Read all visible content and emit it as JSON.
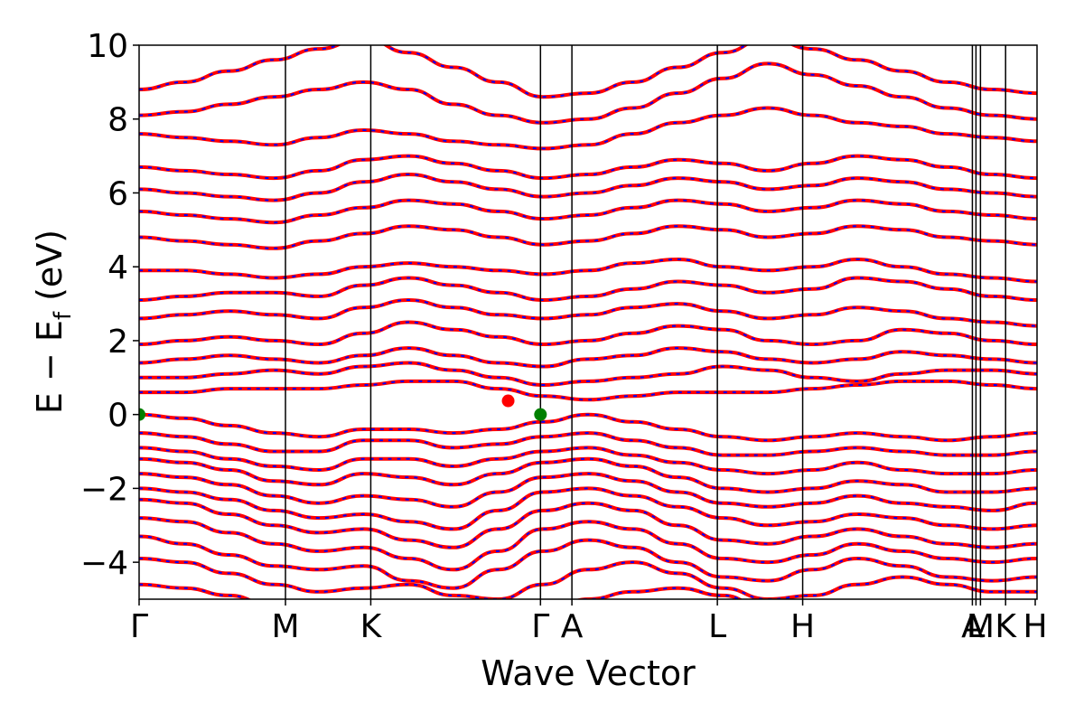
{
  "chart_data": {
    "type": "line",
    "xlabel": "Wave Vector",
    "ylabel": {
      "main": "E − E",
      "sub": "f",
      "unit": " (eV)"
    },
    "ylim": [
      -5,
      10
    ],
    "yticks": [
      -4,
      -2,
      0,
      2,
      4,
      6,
      8,
      10
    ],
    "ytick_labels": [
      "−4",
      "−2",
      "0",
      "2",
      "4",
      "6",
      "8",
      "10"
    ],
    "xlim": [
      0,
      1
    ],
    "kpoints": [
      {
        "label": "Γ",
        "x": 0.0
      },
      {
        "label": "M",
        "x": 0.163
      },
      {
        "label": "K",
        "x": 0.258
      },
      {
        "label": "Γ",
        "x": 0.447
      },
      {
        "label": "A",
        "x": 0.482
      },
      {
        "label": "L",
        "x": 0.644
      },
      {
        "label": "H",
        "x": 0.739
      },
      {
        "label": "A",
        "x": 0.928
      },
      {
        "label": "L",
        "x": 0.932
      },
      {
        "label": "M",
        "x": 0.937
      },
      {
        "label": "K",
        "x": 0.965
      },
      {
        "label": "H",
        "x": 0.998
      }
    ],
    "series": [
      {
        "style": "solid",
        "color": "#ff0000"
      },
      {
        "style": "dashed",
        "color": "#0000ff"
      }
    ],
    "markers": [
      {
        "x": 0.0,
        "y": 0.0,
        "color": "#008000"
      },
      {
        "x": 0.447,
        "y": 0.0,
        "color": "#008000"
      },
      {
        "x": 0.411,
        "y": 0.37,
        "color": "#ff0000"
      }
    ],
    "bands": [
      [
        -4.6,
        -4.7,
        -4.9,
        -5.2,
        -5.6,
        -5.9,
        -6.0,
        -6.1,
        -5.8,
        -5.4,
        -5.0,
        -4.8,
        -4.7,
        -4.9,
        -5.3,
        -5.7,
        -5.9,
        -5.8,
        -5.5,
        -5.2,
        -5.1
      ],
      [
        -3.9,
        -4.0,
        -4.3,
        -4.6,
        -4.8,
        -4.7,
        -4.6,
        -4.9,
        -5.0,
        -4.6,
        -4.2,
        -4.0,
        -4.3,
        -4.7,
        -5.0,
        -4.9,
        -4.6,
        -4.4,
        -4.6,
        -4.8,
        -4.8
      ],
      [
        -3.3,
        -3.5,
        -3.8,
        -4.1,
        -4.2,
        -4.1,
        -4.5,
        -4.7,
        -4.2,
        -3.7,
        -3.4,
        -3.6,
        -4.0,
        -4.4,
        -4.5,
        -4.2,
        -3.9,
        -4.1,
        -4.4,
        -4.5,
        -4.4
      ],
      [
        -2.8,
        -2.9,
        -3.2,
        -3.5,
        -3.7,
        -3.6,
        -3.9,
        -4.2,
        -3.7,
        -3.1,
        -2.9,
        -3.1,
        -3.5,
        -3.9,
        -4.0,
        -3.8,
        -3.5,
        -3.7,
        -3.9,
        -4.0,
        -3.9
      ],
      [
        -2.3,
        -2.4,
        -2.7,
        -3.0,
        -3.2,
        -3.1,
        -3.4,
        -3.6,
        -3.1,
        -2.6,
        -2.4,
        -2.6,
        -3.0,
        -3.4,
        -3.5,
        -3.3,
        -3.1,
        -3.3,
        -3.5,
        -3.6,
        -3.5
      ],
      [
        -2.0,
        -2.1,
        -2.3,
        -2.6,
        -2.8,
        -2.7,
        -2.9,
        -3.1,
        -2.6,
        -2.1,
        -2.0,
        -2.2,
        -2.5,
        -2.8,
        -3.0,
        -2.9,
        -2.7,
        -2.8,
        -3.0,
        -3.1,
        -3.0
      ],
      [
        -1.6,
        -1.7,
        -1.9,
        -2.2,
        -2.4,
        -2.2,
        -2.3,
        -2.5,
        -2.1,
        -1.7,
        -1.6,
        -1.8,
        -2.1,
        -2.4,
        -2.5,
        -2.4,
        -2.2,
        -2.4,
        -2.5,
        -2.6,
        -2.4
      ],
      [
        -1.2,
        -1.3,
        -1.5,
        -1.8,
        -1.9,
        -1.6,
        -1.7,
        -1.9,
        -1.6,
        -1.3,
        -1.2,
        -1.4,
        -1.7,
        -2.0,
        -2.1,
        -2.0,
        -1.8,
        -1.9,
        -2.1,
        -2.1,
        -2.0
      ],
      [
        -0.9,
        -1.0,
        -1.2,
        -1.4,
        -1.5,
        -1.2,
        -1.2,
        -1.4,
        -1.2,
        -1.0,
        -0.9,
        -1.1,
        -1.3,
        -1.5,
        -1.6,
        -1.5,
        -1.3,
        -1.5,
        -1.6,
        -1.6,
        -1.5
      ],
      [
        -0.5,
        -0.6,
        -0.8,
        -1.0,
        -1.0,
        -0.7,
        -0.7,
        -0.9,
        -0.8,
        -0.6,
        -0.5,
        -0.7,
        -0.9,
        -1.1,
        -1.1,
        -1.0,
        -0.9,
        -1.0,
        -1.1,
        -1.1,
        -1.0
      ],
      [
        0.0,
        -0.1,
        -0.3,
        -0.5,
        -0.6,
        -0.4,
        -0.4,
        -0.5,
        -0.4,
        -0.2,
        0.0,
        -0.2,
        -0.4,
        -0.6,
        -0.7,
        -0.6,
        -0.5,
        -0.6,
        -0.7,
        -0.6,
        -0.5
      ],
      [
        0.6,
        0.6,
        0.7,
        0.7,
        0.7,
        0.8,
        0.9,
        0.9,
        0.7,
        0.5,
        0.4,
        0.5,
        0.6,
        0.6,
        0.6,
        0.7,
        0.8,
        0.9,
        0.9,
        0.8,
        0.7
      ],
      [
        1.0,
        1.0,
        1.1,
        1.2,
        1.1,
        1.3,
        1.4,
        1.2,
        1.0,
        0.8,
        0.9,
        1.0,
        1.1,
        1.3,
        1.2,
        1.0,
        0.9,
        1.1,
        1.2,
        1.2,
        1.1
      ],
      [
        1.4,
        1.5,
        1.6,
        1.5,
        1.4,
        1.6,
        1.8,
        1.6,
        1.4,
        1.3,
        1.5,
        1.6,
        1.8,
        1.7,
        1.5,
        1.4,
        1.5,
        1.7,
        1.6,
        1.5,
        1.4
      ],
      [
        1.9,
        2.0,
        2.1,
        2.0,
        1.9,
        2.2,
        2.5,
        2.3,
        2.1,
        1.9,
        2.0,
        2.2,
        2.4,
        2.3,
        2.0,
        1.9,
        2.0,
        2.3,
        2.2,
        2.0,
        1.9
      ],
      [
        2.6,
        2.7,
        2.8,
        2.7,
        2.6,
        2.9,
        3.1,
        2.9,
        2.7,
        2.6,
        2.7,
        2.9,
        3.0,
        2.8,
        2.6,
        2.7,
        2.9,
        2.8,
        2.6,
        2.5,
        2.4
      ],
      [
        3.1,
        3.2,
        3.3,
        3.3,
        3.2,
        3.5,
        3.7,
        3.5,
        3.3,
        3.1,
        3.2,
        3.4,
        3.6,
        3.5,
        3.3,
        3.4,
        3.7,
        3.6,
        3.4,
        3.2,
        3.1
      ],
      [
        3.9,
        3.9,
        3.8,
        3.7,
        3.8,
        4.0,
        4.1,
        4.0,
        3.9,
        3.8,
        3.9,
        4.1,
        4.2,
        4.0,
        3.9,
        4.0,
        4.2,
        4.0,
        3.8,
        3.7,
        3.6
      ],
      [
        4.8,
        4.7,
        4.6,
        4.5,
        4.7,
        4.9,
        5.1,
        5.0,
        4.8,
        4.6,
        4.7,
        4.9,
        5.1,
        5.0,
        4.8,
        4.9,
        5.1,
        5.0,
        4.8,
        4.7,
        4.6
      ],
      [
        5.5,
        5.4,
        5.3,
        5.2,
        5.4,
        5.6,
        5.8,
        5.7,
        5.5,
        5.3,
        5.4,
        5.6,
        5.8,
        5.7,
        5.5,
        5.6,
        5.8,
        5.7,
        5.5,
        5.4,
        5.3
      ],
      [
        6.1,
        6.0,
        5.9,
        5.8,
        6.0,
        6.3,
        6.5,
        6.3,
        6.1,
        5.9,
        6.0,
        6.2,
        6.4,
        6.3,
        6.1,
        6.2,
        6.4,
        6.3,
        6.1,
        6.0,
        5.9
      ],
      [
        6.7,
        6.6,
        6.5,
        6.4,
        6.6,
        6.9,
        7.0,
        6.8,
        6.6,
        6.4,
        6.5,
        6.7,
        6.9,
        6.8,
        6.6,
        6.8,
        7.0,
        6.9,
        6.7,
        6.5,
        6.4
      ],
      [
        7.6,
        7.5,
        7.4,
        7.3,
        7.5,
        7.7,
        7.6,
        7.4,
        7.3,
        7.2,
        7.3,
        7.6,
        7.9,
        8.1,
        8.3,
        8.1,
        7.9,
        7.8,
        7.6,
        7.5,
        7.4
      ],
      [
        8.1,
        8.2,
        8.4,
        8.6,
        8.8,
        9.0,
        8.8,
        8.4,
        8.1,
        7.9,
        8.0,
        8.3,
        8.7,
        9.1,
        9.5,
        9.2,
        8.9,
        8.6,
        8.3,
        8.1,
        8.0
      ],
      [
        8.8,
        9.0,
        9.3,
        9.6,
        9.9,
        10.2,
        9.8,
        9.4,
        9.0,
        8.6,
        8.7,
        9.0,
        9.4,
        9.8,
        10.2,
        9.9,
        9.6,
        9.3,
        9.0,
        8.8,
        8.7
      ]
    ]
  }
}
